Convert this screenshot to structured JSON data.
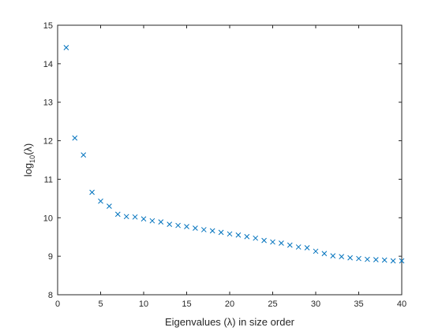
{
  "chart_data": {
    "type": "scatter",
    "xlabel": "Eigenvalues (λ) in size order",
    "ylabel": {
      "prefix": "log",
      "subscript": "10",
      "suffix": "(λ)"
    },
    "xlim": [
      0,
      40
    ],
    "ylim": [
      8,
      15
    ],
    "xticks": [
      0,
      5,
      10,
      15,
      20,
      25,
      30,
      35,
      40
    ],
    "yticks": [
      8,
      9,
      10,
      11,
      12,
      13,
      14,
      15
    ],
    "marker": "x",
    "grid": false,
    "color": "#0072BD",
    "series": [
      {
        "x": [
          1,
          2,
          3,
          4,
          5,
          6,
          7,
          8,
          9,
          10,
          11,
          12,
          13,
          14,
          15,
          16,
          17,
          18,
          19,
          20,
          21,
          22,
          23,
          24,
          25,
          26,
          27,
          28,
          29,
          30,
          31,
          32,
          33,
          34,
          35,
          36,
          37,
          38,
          39,
          40
        ],
        "y": [
          14.42,
          12.07,
          11.63,
          10.66,
          10.43,
          10.3,
          10.09,
          10.03,
          10.02,
          9.97,
          9.92,
          9.89,
          9.83,
          9.8,
          9.77,
          9.73,
          9.69,
          9.66,
          9.62,
          9.58,
          9.55,
          9.51,
          9.47,
          9.41,
          9.37,
          9.34,
          9.29,
          9.24,
          9.22,
          9.13,
          9.07,
          9.01,
          8.99,
          8.96,
          8.94,
          8.92,
          8.91,
          8.9,
          8.88,
          8.88
        ]
      }
    ]
  }
}
